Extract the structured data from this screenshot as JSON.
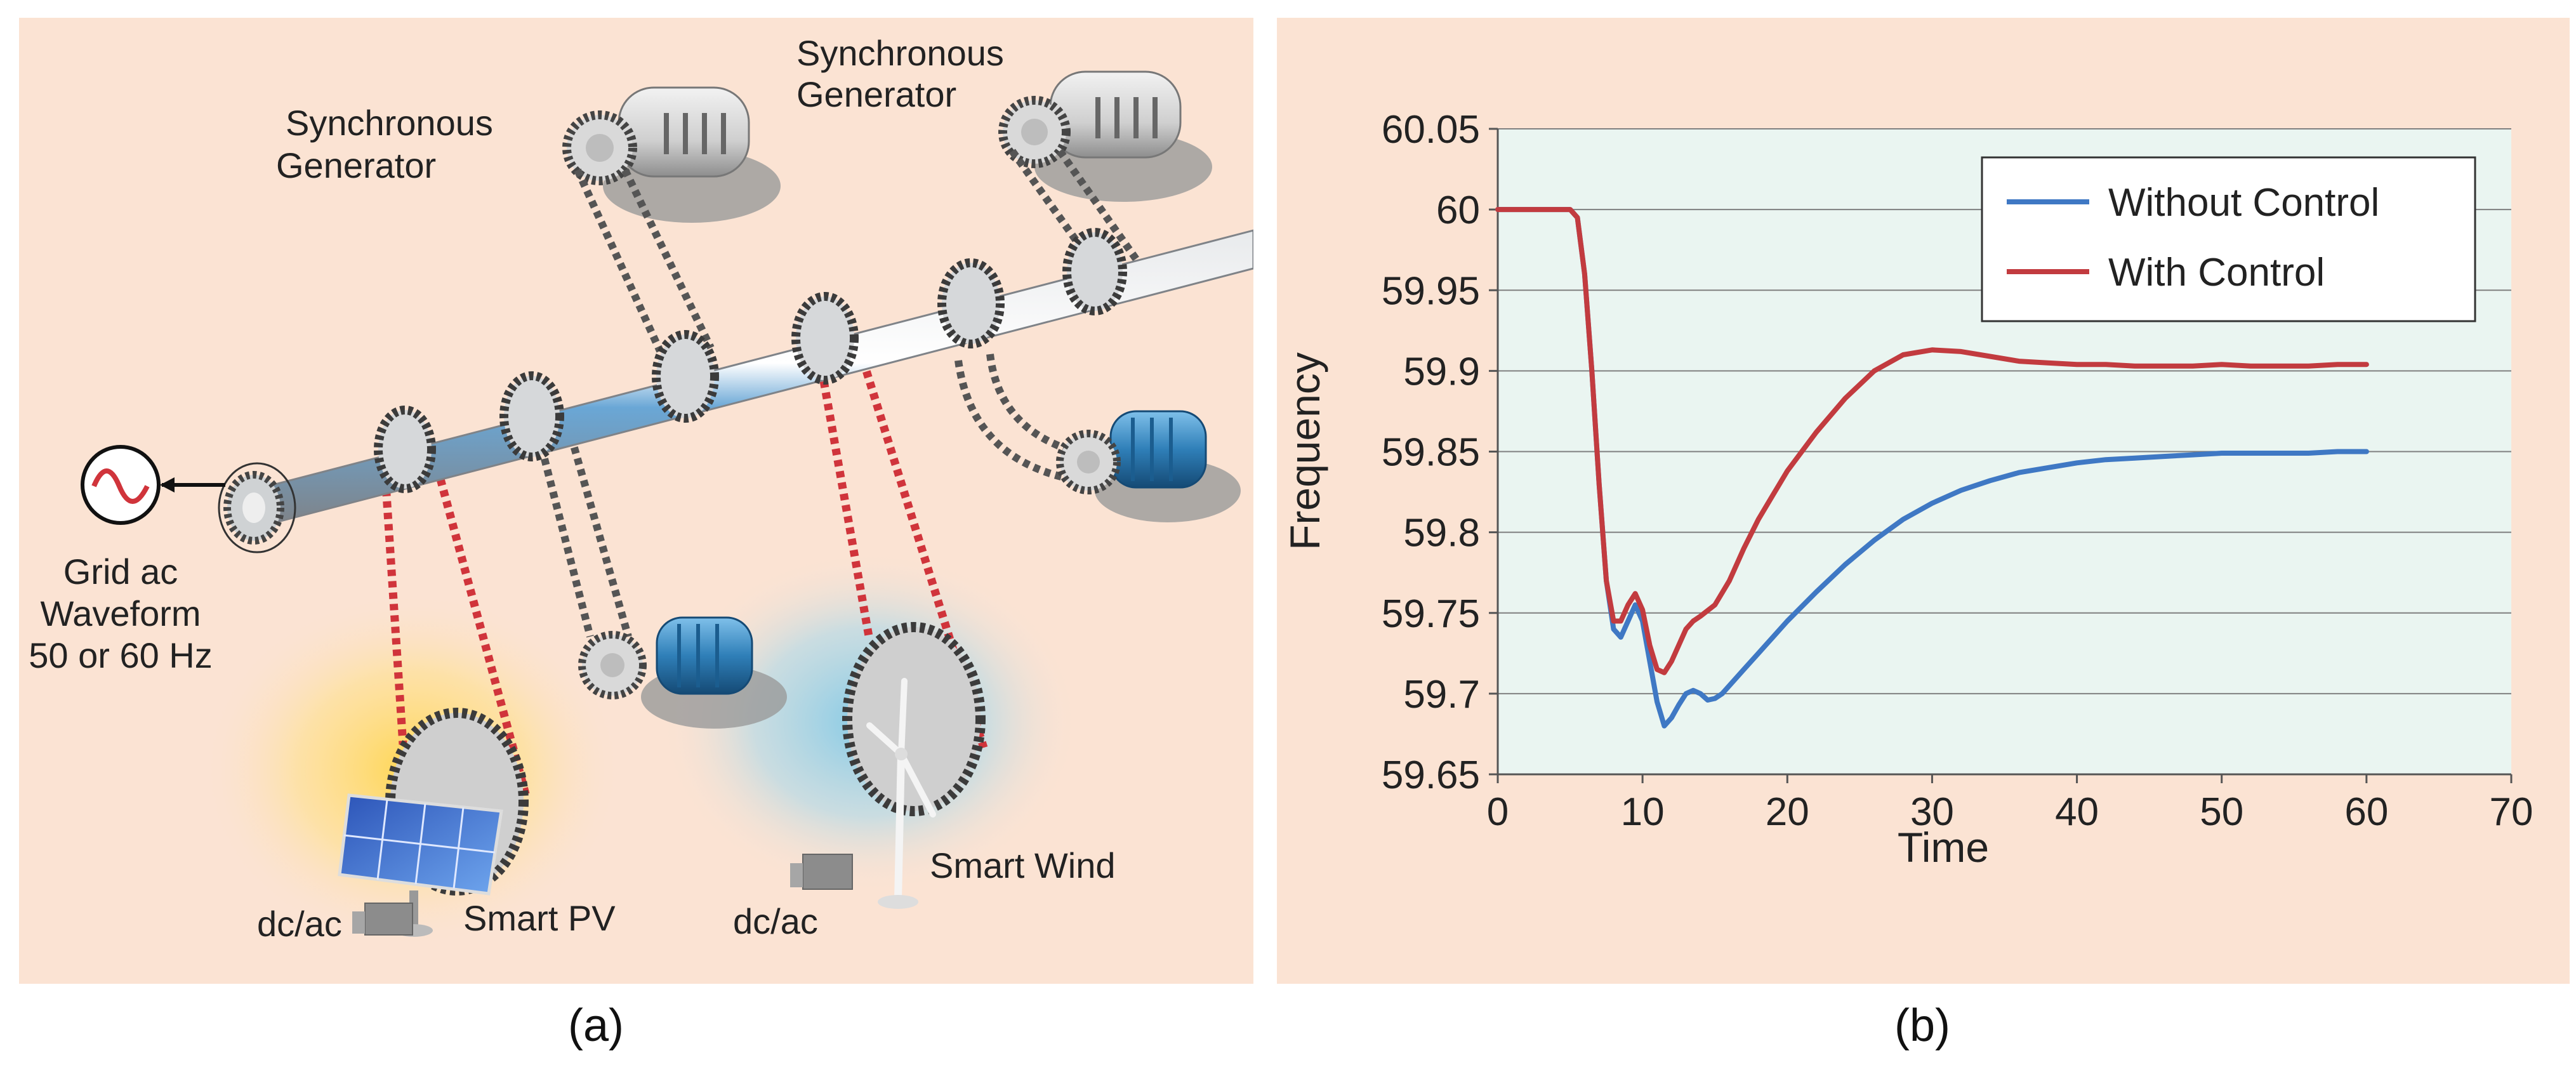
{
  "panel_a": {
    "caption": "(a)",
    "labels": {
      "sync_gen_1": [
        "Synchronous",
        "Generator"
      ],
      "sync_gen_2": [
        "Synchronous",
        "Generator"
      ],
      "grid": [
        "Grid ac",
        "Waveform",
        "50 or 60 Hz"
      ],
      "smart_pv": "Smart PV",
      "smart_wind": "Smart Wind",
      "dcac_pv": "dc/ac",
      "dcac_wind": "dc/ac"
    },
    "colors": {
      "background": "#fbe3d3",
      "shaft": "#b9bcc0",
      "belt_conventional": "#555555",
      "belt_renewable": "#d0343b",
      "motor": "#2f7fb8",
      "pv_glow": "#ffd54a",
      "wind_glow": "#7ec8e6"
    }
  },
  "panel_b": {
    "caption": "(b)"
  },
  "chart_data": {
    "type": "line",
    "title": "",
    "xlabel": "Time",
    "ylabel": "Frequency",
    "xlim": [
      0,
      70
    ],
    "ylim": [
      59.65,
      60.05
    ],
    "x_ticks": [
      0,
      10,
      20,
      30,
      40,
      50,
      60,
      70
    ],
    "y_ticks": [
      59.65,
      59.7,
      59.75,
      59.8,
      59.85,
      59.9,
      59.95,
      60,
      60.05
    ],
    "y_tick_labels": [
      "59.65",
      "59.7",
      "59.75",
      "59.8",
      "59.85",
      "59.9",
      "59.95",
      "60",
      "60.05"
    ],
    "grid": "horizontal",
    "legend_position": "top-right",
    "series": [
      {
        "name": "Without Control",
        "color": "#3f78c4",
        "x": [
          0,
          5,
          5.5,
          6,
          6.5,
          7,
          7.5,
          8,
          8.5,
          9,
          9.5,
          10,
          10.5,
          11,
          11.5,
          12,
          12.5,
          13,
          13.5,
          14,
          14.5,
          15,
          15.5,
          16,
          17,
          18,
          19,
          20,
          22,
          24,
          26,
          28,
          30,
          32,
          34,
          36,
          38,
          40,
          42,
          44,
          46,
          48,
          50,
          52,
          54,
          56,
          58,
          60
        ],
        "y": [
          60.0,
          60.0,
          59.995,
          59.96,
          59.9,
          59.83,
          59.77,
          59.74,
          59.735,
          59.745,
          59.755,
          59.745,
          59.72,
          59.695,
          59.68,
          59.685,
          59.693,
          59.7,
          59.702,
          59.7,
          59.696,
          59.697,
          59.7,
          59.705,
          59.715,
          59.725,
          59.735,
          59.745,
          59.763,
          59.78,
          59.795,
          59.808,
          59.818,
          59.826,
          59.832,
          59.837,
          59.84,
          59.843,
          59.845,
          59.846,
          59.847,
          59.848,
          59.849,
          59.849,
          59.849,
          59.849,
          59.85,
          59.85
        ]
      },
      {
        "name": "With Control",
        "color": "#c23b3f",
        "x": [
          0,
          5,
          5.5,
          6,
          6.5,
          7,
          7.5,
          8,
          8.5,
          9,
          9.5,
          10,
          10.5,
          11,
          11.5,
          12,
          12.5,
          13,
          13.5,
          14,
          15,
          16,
          17,
          18,
          19,
          20,
          22,
          24,
          26,
          28,
          30,
          32,
          34,
          36,
          38,
          40,
          42,
          44,
          46,
          48,
          50,
          52,
          54,
          56,
          58,
          60
        ],
        "y": [
          60.0,
          60.0,
          59.995,
          59.96,
          59.9,
          59.83,
          59.77,
          59.745,
          59.745,
          59.755,
          59.762,
          59.752,
          59.73,
          59.715,
          59.713,
          59.72,
          59.73,
          59.74,
          59.745,
          59.748,
          59.755,
          59.77,
          59.79,
          59.808,
          59.823,
          59.838,
          59.862,
          59.883,
          59.9,
          59.91,
          59.913,
          59.912,
          59.909,
          59.906,
          59.905,
          59.904,
          59.904,
          59.903,
          59.903,
          59.903,
          59.904,
          59.903,
          59.903,
          59.903,
          59.904,
          59.904
        ]
      }
    ]
  }
}
